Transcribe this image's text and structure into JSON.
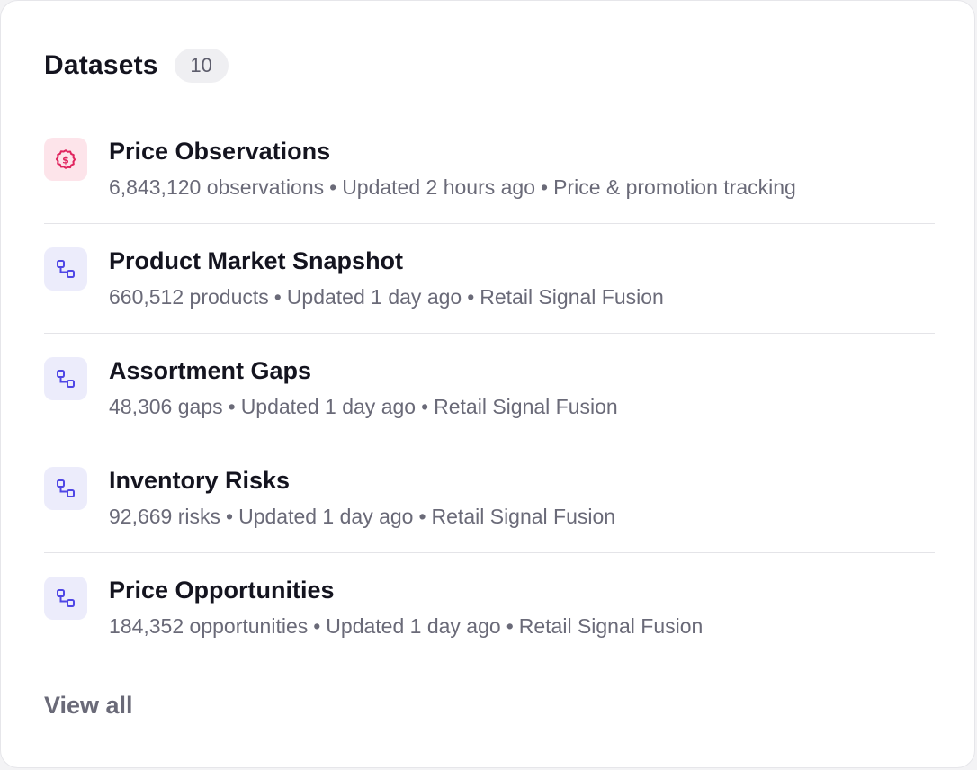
{
  "header": {
    "title": "Datasets",
    "count": "10"
  },
  "datasets": [
    {
      "name": "Price Observations",
      "icon": "price-tag-icon",
      "icon_color": "#e0245e",
      "count_text": "6,843,120 observations",
      "updated": "Updated 2 hours ago",
      "source": "Price & promotion tracking"
    },
    {
      "name": "Product Market Snapshot",
      "icon": "workflow-icon",
      "icon_color": "#4f46e5",
      "count_text": "660,512 products",
      "updated": "Updated 1 day ago",
      "source": "Retail Signal Fusion"
    },
    {
      "name": "Assortment Gaps",
      "icon": "workflow-icon",
      "icon_color": "#4f46e5",
      "count_text": "48,306 gaps",
      "updated": "Updated 1 day ago",
      "source": "Retail Signal Fusion"
    },
    {
      "name": "Inventory Risks",
      "icon": "workflow-icon",
      "icon_color": "#4f46e5",
      "count_text": "92,669 risks",
      "updated": "Updated 1 day ago",
      "source": "Retail Signal Fusion"
    },
    {
      "name": "Price Opportunities",
      "icon": "workflow-icon",
      "icon_color": "#4f46e5",
      "count_text": "184,352 opportunities",
      "updated": "Updated 1 day ago",
      "source": "Retail Signal Fusion"
    }
  ],
  "separator": "•",
  "footer": {
    "view_all": "View all"
  }
}
